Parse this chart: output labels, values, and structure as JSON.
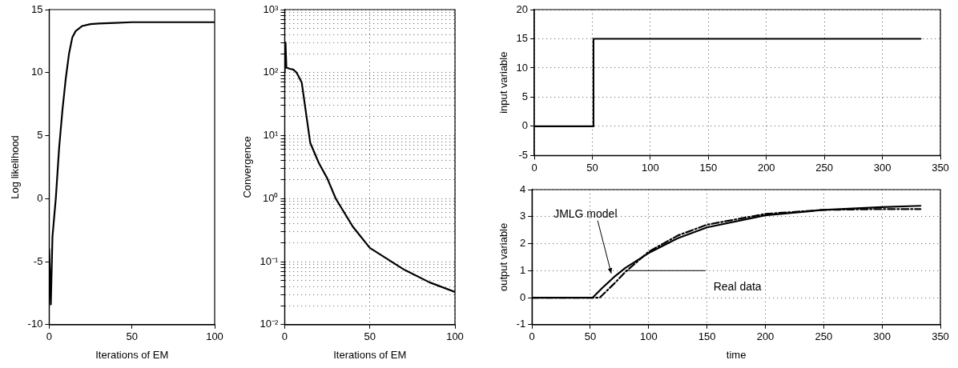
{
  "chart_data": [
    {
      "type": "line",
      "xlabel": "Iterations of EM",
      "ylabel": "Log likelihood",
      "xlim": [
        0,
        100
      ],
      "xticks": [
        0,
        50,
        100
      ],
      "ylim": [
        -10,
        15
      ],
      "yticks": [
        -10,
        -5,
        0,
        5,
        10,
        15
      ],
      "grid": false,
      "marker": "none",
      "x": [
        0,
        1,
        2,
        4,
        6,
        8,
        10,
        12,
        14,
        16,
        20,
        25,
        30,
        40,
        50,
        100
      ],
      "series": [
        {
          "color": "#000000",
          "values": [
            -4,
            -8.4,
            -3,
            0,
            4,
            7,
            9.5,
            11.5,
            12.8,
            13.3,
            13.7,
            13.85,
            13.9,
            13.95,
            14,
            14
          ]
        }
      ]
    },
    {
      "type": "line",
      "xlabel": "Iterations of EM",
      "ylabel": "Convergence",
      "log": "y",
      "xlim": [
        0,
        100
      ],
      "xticks": [
        0,
        50,
        100
      ],
      "ylim": [
        0.01,
        1000
      ],
      "grid": true,
      "marker": "none",
      "yticks": [
        {
          "value": 0.01,
          "label": "10⁻²"
        },
        {
          "value": 0.02,
          "label": null
        },
        {
          "value": 0.03,
          "label": null
        },
        {
          "value": 0.04,
          "label": null
        },
        {
          "value": 0.05,
          "label": null
        },
        {
          "value": 0.06,
          "label": null
        },
        {
          "value": 0.07,
          "label": null
        },
        {
          "value": 0.08,
          "label": null
        },
        {
          "value": 0.09,
          "label": null
        },
        {
          "value": 0.1,
          "label": "10⁻¹"
        },
        {
          "value": 0.2,
          "label": null
        },
        {
          "value": 0.3,
          "label": null
        },
        {
          "value": 0.4,
          "label": null
        },
        {
          "value": 0.5,
          "label": null
        },
        {
          "value": 0.6,
          "label": null
        },
        {
          "value": 0.7,
          "label": null
        },
        {
          "value": 0.8,
          "label": null
        },
        {
          "value": 0.9,
          "label": null
        },
        {
          "value": 1,
          "label": "10⁰"
        },
        {
          "value": 2,
          "label": null
        },
        {
          "value": 3,
          "label": null
        },
        {
          "value": 4,
          "label": null
        },
        {
          "value": 5,
          "label": null
        },
        {
          "value": 6,
          "label": null
        },
        {
          "value": 7,
          "label": null
        },
        {
          "value": 8,
          "label": null
        },
        {
          "value": 9,
          "label": null
        },
        {
          "value": 10,
          "label": "10¹"
        },
        {
          "value": 20,
          "label": null
        },
        {
          "value": 30,
          "label": null
        },
        {
          "value": 40,
          "label": null
        },
        {
          "value": 50,
          "label": null
        },
        {
          "value": 60,
          "label": null
        },
        {
          "value": 70,
          "label": null
        },
        {
          "value": 80,
          "label": null
        },
        {
          "value": 90,
          "label": null
        },
        {
          "value": 100,
          "label": "10²"
        },
        {
          "value": 200,
          "label": null
        },
        {
          "value": 300,
          "label": null
        },
        {
          "value": 400,
          "label": null
        },
        {
          "value": 500,
          "label": null
        },
        {
          "value": 600,
          "label": null
        },
        {
          "value": 700,
          "label": null
        },
        {
          "value": 800,
          "label": null
        },
        {
          "value": 900,
          "label": null
        },
        {
          "value": 1000,
          "label": "10³"
        }
      ],
      "x": [
        0,
        0.5,
        1,
        3,
        5,
        7,
        10,
        15,
        20,
        25,
        30,
        40,
        50,
        70,
        85,
        100
      ],
      "series": [
        {
          "color": "#000000",
          "values": [
            100,
            300,
            120,
            115,
            112,
            100,
            70,
            7.7,
            3.7,
            2.1,
            1.0,
            0.36,
            0.165,
            0.075,
            0.047,
            0.033
          ]
        }
      ]
    },
    {
      "type": "line",
      "ylabel": "input variable",
      "xlim": [
        0,
        350
      ],
      "xticks": [
        0,
        50,
        100,
        150,
        200,
        250,
        300,
        350
      ],
      "ylim": [
        -5,
        20
      ],
      "yticks": [
        -5,
        0,
        5,
        10,
        15,
        20
      ],
      "grid": true,
      "marker": "none",
      "x": [
        0,
        51,
        51,
        333
      ],
      "series": [
        {
          "color": "#000000",
          "values": [
            0,
            0,
            15,
            15
          ]
        }
      ]
    },
    {
      "type": "line",
      "xlabel": "time",
      "ylabel": "output variable",
      "xlim": [
        0,
        350
      ],
      "xticks": [
        0,
        50,
        100,
        150,
        200,
        250,
        300,
        350
      ],
      "ylim": [
        -1,
        4
      ],
      "yticks": [
        -1,
        0,
        1,
        2,
        3,
        4
      ],
      "grid": true,
      "marker": "none",
      "annotations": [
        {
          "text": "JMLG model",
          "x": 70,
          "y": 0.75
        },
        {
          "text": "Real data",
          "x": 80,
          "y": 1
        }
      ],
      "series": [
        {
          "color": "#000000",
          "line_style": "solid",
          "x": [
            0,
            52,
            60,
            70,
            80,
            100,
            125,
            150,
            200,
            250,
            300,
            333
          ],
          "values": [
            0,
            0,
            0.35,
            0.75,
            1.1,
            1.65,
            2.2,
            2.6,
            3.05,
            3.25,
            3.35,
            3.4
          ]
        },
        {
          "color": "#000000",
          "line_style": "dashed",
          "x": [
            0,
            58,
            70,
            80,
            100,
            125,
            150,
            200,
            250,
            300,
            333
          ],
          "values": [
            0,
            0,
            0.5,
            0.95,
            1.7,
            2.3,
            2.7,
            3.1,
            3.25,
            3.28,
            3.28
          ]
        }
      ]
    }
  ]
}
